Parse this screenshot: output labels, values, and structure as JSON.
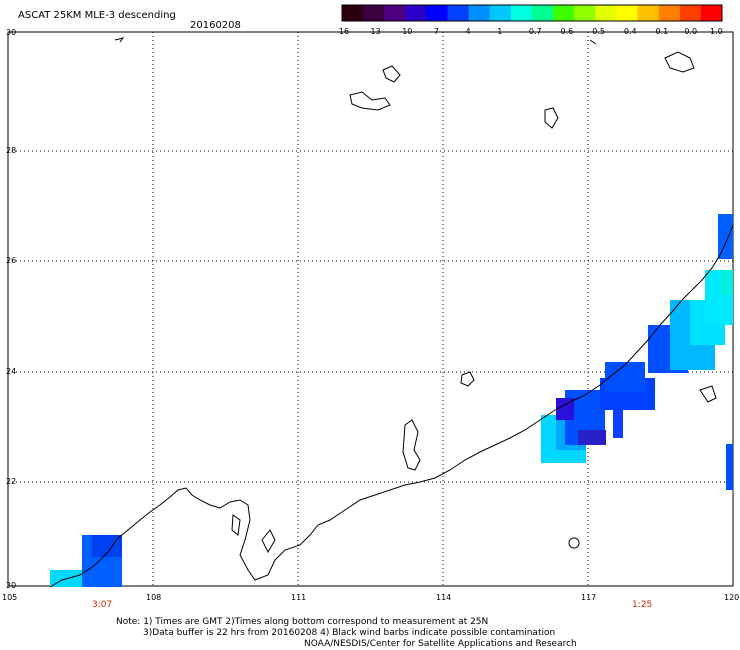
{
  "header": {
    "title": "ASCAT 25KM MLE-3 descending",
    "date": "20160208"
  },
  "colorbar": {
    "labels": [
      "-16",
      "-13",
      "-10",
      "-7",
      "-4",
      "-1",
      "-0.7",
      "-0.6",
      "-0.5",
      "-0.4",
      "-0.1",
      "0.0",
      "1.0"
    ],
    "colors": [
      "#2a0010",
      "#3a0040",
      "#4d0080",
      "#2a00c8",
      "#0000ff",
      "#0040ff",
      "#0090ff",
      "#00c8ff",
      "#00ffe0",
      "#00ff90",
      "#40ff00",
      "#90ff00",
      "#e0ff00",
      "#ffff00",
      "#ffc000",
      "#ff8000",
      "#ff4000",
      "#ff0000"
    ]
  },
  "axes": {
    "lat_labels": [
      "30",
      "28",
      "26",
      "24",
      "22",
      "20"
    ],
    "lon_labels": [
      "105",
      "108",
      "111",
      "114",
      "117",
      "120"
    ]
  },
  "pass_times": [
    "3:07",
    "1:25"
  ],
  "notes": {
    "line1": "Note: 1) Times are GMT 2)Times along bottom correspond to measurement at 25N",
    "line2": "3)Data buffer is 22 hrs from 20160208 4) Black wind barbs indicate possible contamination",
    "line3": "NOAA/NESDIS/Center for Satellite Applications and Research"
  }
}
